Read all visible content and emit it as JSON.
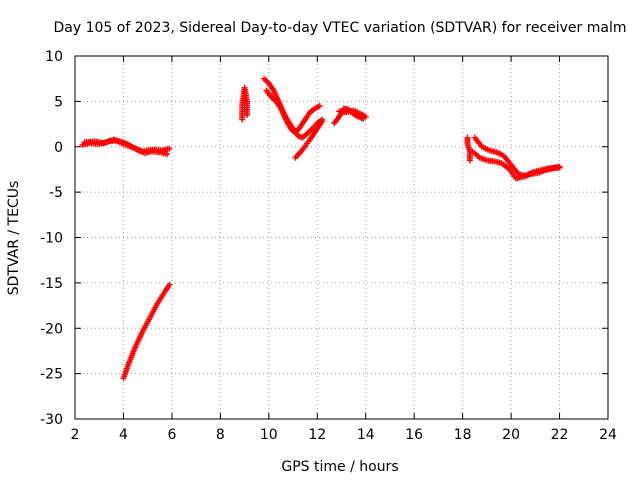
{
  "chart_data": {
    "type": "scatter",
    "title": "Day 105 of 2023, Sidereal Day-to-day VTEC variation (SDTVAR) for receiver malm",
    "xlabel": "GPS time / hours",
    "ylabel": "SDTVAR / TECUs",
    "xlim": [
      2,
      24
    ],
    "ylim": [
      -30,
      10
    ],
    "xticks": [
      2,
      4,
      6,
      8,
      10,
      12,
      14,
      16,
      18,
      20,
      22,
      24
    ],
    "yticks": [
      10,
      5,
      0,
      -5,
      -10,
      -15,
      -20,
      -25,
      -30
    ],
    "grid": true,
    "marker": "+",
    "color": "#ff0000",
    "series": [
      {
        "name": "SDTVAR",
        "segments": [
          {
            "x": [
              2.3,
              2.6,
              3.0,
              3.4,
              3.7,
              4.0,
              4.3,
              4.6,
              4.9,
              5.2,
              5.5,
              5.8
            ],
            "y": [
              0.2,
              0.4,
              0.3,
              0.6,
              0.7,
              0.5,
              0.1,
              -0.4,
              -0.7,
              -0.5,
              -0.6,
              -0.8
            ]
          },
          {
            "x": [
              2.4,
              2.8,
              3.2,
              3.6,
              4.0,
              4.4,
              4.8,
              5.2,
              5.6,
              5.9
            ],
            "y": [
              0.5,
              0.6,
              0.4,
              0.8,
              0.3,
              -0.1,
              -0.5,
              -0.3,
              -0.4,
              -0.2
            ]
          },
          {
            "x": [
              4.0,
              4.2,
              4.5,
              4.8,
              5.1,
              5.4,
              5.7,
              5.9
            ],
            "y": [
              -25.5,
              -24.0,
              -22.0,
              -20.3,
              -18.8,
              -17.3,
              -16.0,
              -15.2
            ]
          },
          {
            "x": [
              8.9,
              8.9,
              9.0,
              9.1,
              9.1
            ],
            "y": [
              3.0,
              4.5,
              6.5,
              5.0,
              3.5
            ]
          },
          {
            "x": [
              9.8,
              10.0,
              10.2,
              10.4,
              10.6,
              10.8,
              11.0,
              11.2,
              11.4,
              11.6,
              11.8,
              12.0,
              12.2
            ],
            "y": [
              7.5,
              7.0,
              6.2,
              5.0,
              3.8,
              2.8,
              2.0,
              1.2,
              1.0,
              1.5,
              2.0,
              2.6,
              3.0
            ]
          },
          {
            "x": [
              9.9,
              10.1,
              10.3,
              10.5,
              10.7,
              10.9,
              11.1,
              11.3,
              11.5,
              11.7,
              11.9,
              12.1
            ],
            "y": [
              6.2,
              5.5,
              5.0,
              4.2,
              3.0,
              2.0,
              1.5,
              2.2,
              3.0,
              3.8,
              4.2,
              4.5
            ]
          },
          {
            "x": [
              11.1,
              11.4,
              11.7,
              12.0,
              12.2
            ],
            "y": [
              -1.2,
              -0.3,
              0.8,
              2.0,
              2.8
            ]
          },
          {
            "x": [
              12.7,
              12.9,
              13.1,
              13.3,
              13.5,
              13.7,
              13.9
            ],
            "y": [
              2.6,
              3.3,
              4.2,
              4.1,
              3.6,
              3.3,
              3.1
            ]
          },
          {
            "x": [
              12.9,
              13.2,
              13.5,
              13.8,
              14.0
            ],
            "y": [
              3.9,
              3.8,
              4.0,
              3.6,
              3.3
            ]
          },
          {
            "x": [
              18.2,
              18.2,
              18.3,
              18.3
            ],
            "y": [
              1.0,
              0.3,
              -0.5,
              -1.5
            ]
          },
          {
            "x": [
              18.5,
              18.8,
              19.1,
              19.4,
              19.7,
              20.0,
              20.3,
              20.6,
              20.9,
              21.2,
              21.5,
              21.8,
              22.0
            ],
            "y": [
              1.0,
              0.0,
              -0.4,
              -0.6,
              -1.0,
              -2.0,
              -3.0,
              -3.2,
              -2.8,
              -2.6,
              -2.4,
              -2.3,
              -2.2
            ]
          },
          {
            "x": [
              18.4,
              18.7,
              19.0,
              19.3,
              19.6,
              19.9,
              20.2,
              20.5,
              20.8,
              21.1,
              21.4,
              21.7,
              22.0
            ],
            "y": [
              -0.5,
              -1.2,
              -1.5,
              -1.6,
              -1.8,
              -2.4,
              -3.5,
              -3.3,
              -3.0,
              -2.9,
              -2.6,
              -2.4,
              -2.3
            ]
          }
        ]
      }
    ]
  }
}
